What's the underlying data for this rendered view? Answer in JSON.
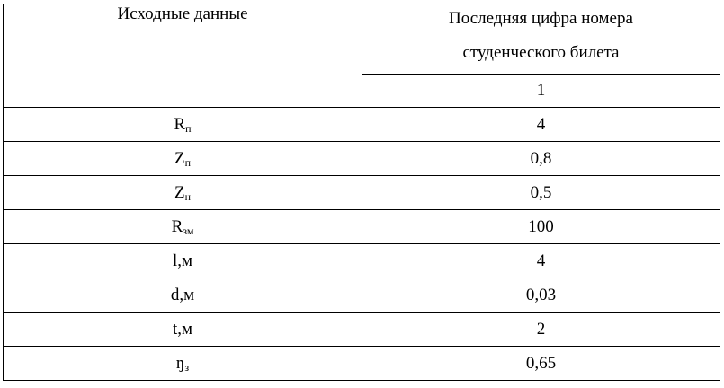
{
  "header": {
    "left": "Исходные данные",
    "right_line1": "Последняя цифра номера",
    "right_line2": "студенческого билета",
    "digit": "1"
  },
  "rows": [
    {
      "base": "R",
      "sub": "п",
      "value": "4"
    },
    {
      "base": "Z",
      "sub": "п",
      "value": "0,8"
    },
    {
      "base": "Z",
      "sub": "н",
      "value": "0,5"
    },
    {
      "base": "R",
      "sub": "зм",
      "value": "100"
    },
    {
      "base": "l,м",
      "sub": "",
      "value": "4"
    },
    {
      "base": "d,м",
      "sub": "",
      "value": "0,03"
    },
    {
      "base": "t,м",
      "sub": "",
      "value": "2"
    },
    {
      "base": "ŋ",
      "sub": "з",
      "value": "0,65"
    }
  ]
}
